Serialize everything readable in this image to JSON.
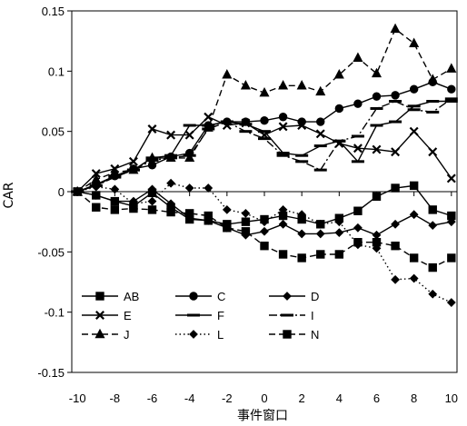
{
  "chart_data": {
    "type": "line",
    "title": "",
    "xlabel": "事件窗口",
    "ylabel": "CAR",
    "xlim": [
      -10.3,
      10.3
    ],
    "ylim": [
      -0.15,
      0.15
    ],
    "x_ticks": [
      -10,
      -8,
      -6,
      -4,
      -2,
      0,
      2,
      4,
      6,
      8,
      10
    ],
    "x_tick_labels": [
      "-10",
      "-8",
      "-6",
      "-4",
      "-2",
      "0",
      "2",
      "4",
      "6",
      "8",
      "10"
    ],
    "y_ticks": [
      0.15,
      0.1,
      0.05,
      0,
      -0.05,
      -0.1,
      -0.15
    ],
    "y_tick_labels": [
      "0.15",
      "0.1",
      "0.05",
      "0",
      "-0.05",
      "-0.1",
      "-0.15"
    ],
    "grid": false,
    "legend_position": "bottom-left inside",
    "x": [
      -10,
      -9,
      -8,
      -7,
      -6,
      -5,
      -4,
      -3,
      -2,
      -1,
      0,
      1,
      2,
      3,
      4,
      5,
      6,
      7,
      8,
      9,
      10
    ],
    "series": [
      {
        "name": "AB",
        "line": "solid",
        "marker": "square",
        "values": [
          0,
          -0.003,
          -0.008,
          -0.012,
          -0.001,
          -0.013,
          -0.023,
          -0.024,
          -0.027,
          -0.025,
          -0.023,
          -0.02,
          -0.023,
          -0.027,
          -0.022,
          -0.016,
          -0.004,
          0.003,
          0.005,
          -0.015,
          -0.02
        ]
      },
      {
        "name": "C",
        "line": "solid",
        "marker": "circle",
        "values": [
          0,
          0.006,
          0.013,
          0.019,
          0.022,
          0.029,
          0.032,
          0.055,
          0.058,
          0.058,
          0.059,
          0.062,
          0.058,
          0.058,
          0.069,
          0.073,
          0.079,
          0.08,
          0.085,
          0.091,
          0.085
        ]
      },
      {
        "name": "D",
        "line": "solid",
        "marker": "diamond",
        "values": [
          0,
          -0.003,
          -0.008,
          -0.008,
          0.002,
          -0.01,
          -0.022,
          -0.024,
          -0.03,
          -0.036,
          -0.033,
          -0.027,
          -0.035,
          -0.035,
          -0.034,
          -0.03,
          -0.036,
          -0.027,
          -0.019,
          -0.028,
          -0.025
        ]
      },
      {
        "name": "E",
        "line": "solid",
        "marker": "x",
        "values": [
          0,
          0.015,
          0.019,
          0.025,
          0.052,
          0.047,
          0.047,
          0.062,
          0.055,
          0.057,
          0.047,
          0.054,
          0.055,
          0.048,
          0.04,
          0.036,
          0.035,
          0.033,
          0.05,
          0.033,
          0.011
        ]
      },
      {
        "name": "F",
        "line": "solid",
        "marker": "dash",
        "values": [
          0,
          0.005,
          0.013,
          0.018,
          0.028,
          0.03,
          0.055,
          0.055,
          0.058,
          0.056,
          0.05,
          0.032,
          0.03,
          0.038,
          0.042,
          0.025,
          0.055,
          0.058,
          0.071,
          0.075,
          0.075
        ]
      },
      {
        "name": "I",
        "line": "dashdot",
        "marker": "dash",
        "values": [
          0,
          0.005,
          0.012,
          0.018,
          0.026,
          0.028,
          0.03,
          0.052,
          0.058,
          0.05,
          0.044,
          0.03,
          0.025,
          0.018,
          0.042,
          0.046,
          0.069,
          0.075,
          0.068,
          0.066,
          0.077
        ]
      },
      {
        "name": "J",
        "line": "dashed",
        "marker": "triangle",
        "values": [
          0,
          0.01,
          0.016,
          0.018,
          0.028,
          0.028,
          0.028,
          0.053,
          0.097,
          0.088,
          0.082,
          0.088,
          0.088,
          0.083,
          0.097,
          0.111,
          0.098,
          0.135,
          0.123,
          0.093,
          0.102
        ]
      },
      {
        "name": "L",
        "line": "dotted",
        "marker": "diamond",
        "values": [
          0,
          0.004,
          0.002,
          -0.01,
          -0.008,
          0.007,
          0.003,
          0.003,
          -0.015,
          -0.018,
          -0.025,
          -0.015,
          -0.019,
          -0.027,
          -0.025,
          -0.044,
          -0.047,
          -0.073,
          -0.072,
          -0.085,
          -0.092
        ]
      },
      {
        "name": "N",
        "line": "dashed",
        "marker": "square",
        "values": [
          0,
          -0.013,
          -0.015,
          -0.014,
          -0.015,
          -0.017,
          -0.018,
          -0.02,
          -0.03,
          -0.033,
          -0.045,
          -0.052,
          -0.055,
          -0.052,
          -0.052,
          -0.042,
          -0.042,
          -0.045,
          -0.055,
          -0.063,
          -0.055
        ]
      }
    ]
  }
}
